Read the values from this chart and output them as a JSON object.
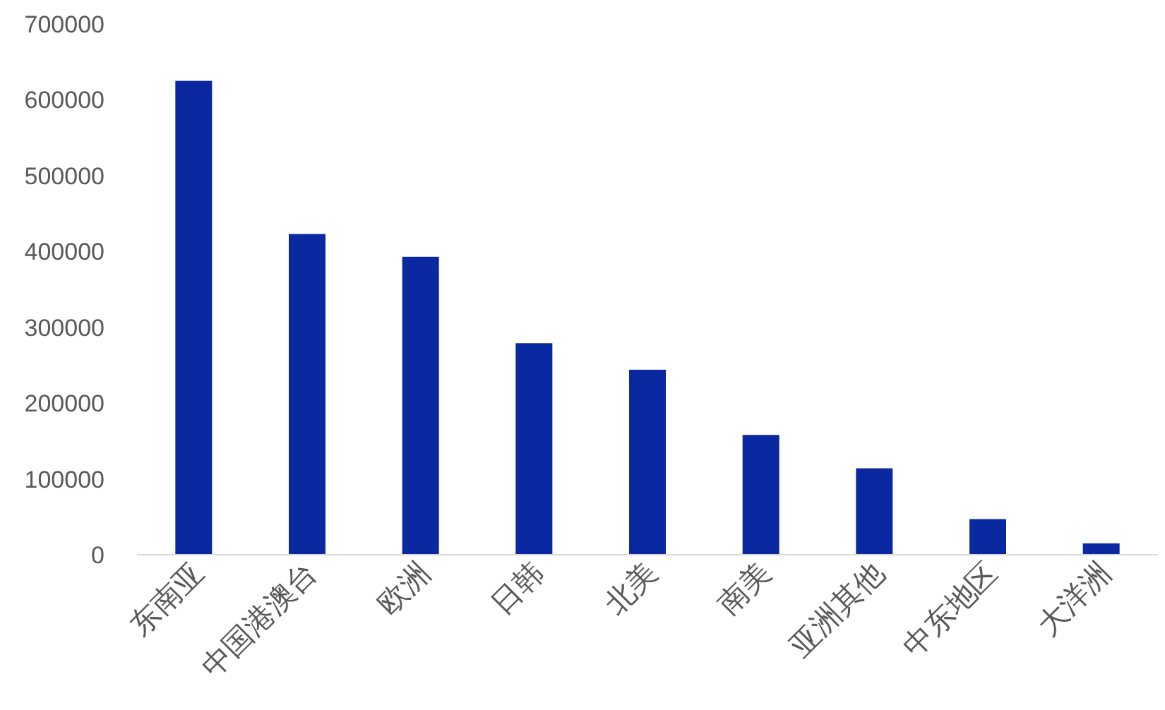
{
  "chart_data": {
    "type": "bar",
    "categories": [
      "东南亚",
      "中国港澳台",
      "欧洲",
      "日韩",
      "北美",
      "南美",
      "亚洲其他",
      "中东地区",
      "大洋洲"
    ],
    "values": [
      625000,
      423000,
      393000,
      279000,
      244000,
      158000,
      114000,
      47000,
      15000
    ],
    "color": "#0a28a0",
    "ylim": [
      0,
      700000
    ],
    "yticks": [
      0,
      100000,
      200000,
      300000,
      400000,
      500000,
      600000,
      700000
    ],
    "grid": false
  }
}
